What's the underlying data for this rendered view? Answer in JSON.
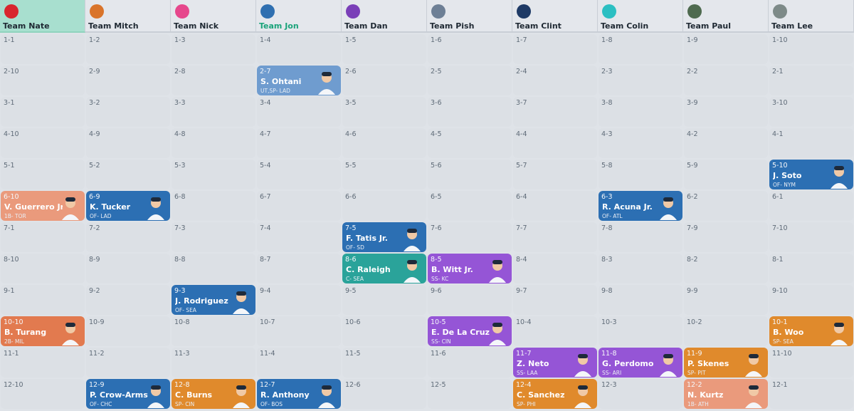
{
  "teams": [
    {
      "name": "Team Nate",
      "logo": "red-cap-icon",
      "active": true,
      "current": false
    },
    {
      "name": "Team Mitch",
      "logo": "orange-ball-logo-icon",
      "active": false,
      "current": false
    },
    {
      "name": "Team Nick",
      "logo": "pink-helmet-icon",
      "active": false,
      "current": false
    },
    {
      "name": "Team Jon",
      "logo": "mets-logo-icon",
      "active": false,
      "current": true
    },
    {
      "name": "Team Dan",
      "logo": "purple-helmet-icon",
      "active": false,
      "current": false
    },
    {
      "name": "Team Pish",
      "logo": "ball-logo-icon",
      "active": false,
      "current": false
    },
    {
      "name": "Team Clint",
      "logo": "blue-helmet-icon",
      "active": false,
      "current": false
    },
    {
      "name": "Team Colin",
      "logo": "teal-helmet-icon",
      "active": false,
      "current": false
    },
    {
      "name": "Team Paul",
      "logo": "green-helmet-icon",
      "active": false,
      "current": false
    },
    {
      "name": "Team Lee",
      "logo": "grey-helmet-icon",
      "active": false,
      "current": false
    }
  ],
  "rounds": [
    [
      "1-1",
      "1-2",
      "1-3",
      "1-4",
      "1-5",
      "1-6",
      "1-7",
      "1-8",
      "1-9",
      "1-10"
    ],
    [
      "2-10",
      "2-9",
      "2-8",
      "2-7",
      "2-6",
      "2-5",
      "2-4",
      "2-3",
      "2-2",
      "2-1"
    ],
    [
      "3-1",
      "3-2",
      "3-3",
      "3-4",
      "3-5",
      "3-6",
      "3-7",
      "3-8",
      "3-9",
      "3-10"
    ],
    [
      "4-10",
      "4-9",
      "4-8",
      "4-7",
      "4-6",
      "4-5",
      "4-4",
      "4-3",
      "4-2",
      "4-1"
    ],
    [
      "5-1",
      "5-2",
      "5-3",
      "5-4",
      "5-5",
      "5-6",
      "5-7",
      "5-8",
      "5-9",
      "5-10"
    ],
    [
      "6-10",
      "6-9",
      "6-8",
      "6-7",
      "6-6",
      "6-5",
      "6-4",
      "6-3",
      "6-2",
      "6-1"
    ],
    [
      "7-1",
      "7-2",
      "7-3",
      "7-4",
      "7-5",
      "7-6",
      "7-7",
      "7-8",
      "7-9",
      "7-10"
    ],
    [
      "8-10",
      "8-9",
      "8-8",
      "8-7",
      "8-6",
      "8-5",
      "8-4",
      "8-3",
      "8-2",
      "8-1"
    ],
    [
      "9-1",
      "9-2",
      "9-3",
      "9-4",
      "9-5",
      "9-6",
      "9-7",
      "9-8",
      "9-9",
      "9-10"
    ],
    [
      "10-10",
      "10-9",
      "10-8",
      "10-7",
      "10-6",
      "10-5",
      "10-4",
      "10-3",
      "10-2",
      "10-1"
    ],
    [
      "11-1",
      "11-2",
      "11-3",
      "11-4",
      "11-5",
      "11-6",
      "11-7",
      "11-8",
      "11-9",
      "11-10"
    ],
    [
      "12-10",
      "12-9",
      "12-8",
      "12-7",
      "12-6",
      "12-5",
      "12-4",
      "12-3",
      "12-2",
      "12-1"
    ]
  ],
  "picks": [
    {
      "round": 2,
      "team": 4,
      "player": "S. Ohtani",
      "meta": "UT,SP- LAD",
      "color": "#6f9ccf"
    },
    {
      "round": 5,
      "team": 10,
      "player": "J. Soto",
      "meta": "OF- NYM",
      "color": "#2c6fb3"
    },
    {
      "round": 6,
      "team": 1,
      "player": "V. Guerrero Jr.",
      "meta": "1B- TOR",
      "color": "#ea9a7c"
    },
    {
      "round": 6,
      "team": 2,
      "player": "K. Tucker",
      "meta": "OF- LAD",
      "color": "#2c6fb3"
    },
    {
      "round": 6,
      "team": 8,
      "player": "R. Acuna Jr.",
      "meta": "OF- ATL",
      "color": "#2c6fb3"
    },
    {
      "round": 7,
      "team": 5,
      "player": "F. Tatis Jr.",
      "meta": "OF- SD",
      "color": "#2c6fb3"
    },
    {
      "round": 8,
      "team": 5,
      "player": "C. Raleigh",
      "meta": "C- SEA",
      "color": "#2aa39a"
    },
    {
      "round": 8,
      "team": 6,
      "player": "B. Witt Jr.",
      "meta": "SS- KC",
      "color": "#9555d6"
    },
    {
      "round": 9,
      "team": 3,
      "player": "J. Rodriguez",
      "meta": "OF- SEA",
      "color": "#2c6fb3"
    },
    {
      "round": 10,
      "team": 1,
      "player": "B. Turang",
      "meta": "2B- MIL",
      "color": "#e27a4f"
    },
    {
      "round": 10,
      "team": 6,
      "player": "E. De La Cruz",
      "meta": "SS- CIN",
      "color": "#9555d6"
    },
    {
      "round": 10,
      "team": 10,
      "player": "B. Woo",
      "meta": "SP- SEA",
      "color": "#e08a2c"
    },
    {
      "round": 11,
      "team": 7,
      "player": "Z. Neto",
      "meta": "SS- LAA",
      "color": "#9555d6"
    },
    {
      "round": 11,
      "team": 8,
      "player": "G. Perdomo",
      "meta": "SS- ARI",
      "color": "#9555d6"
    },
    {
      "round": 11,
      "team": 9,
      "player": "P. Skenes",
      "meta": "SP- PIT",
      "color": "#e08a2c"
    },
    {
      "round": 12,
      "team": 2,
      "player": "P. Crow-Armst…",
      "meta": "OF- CHC",
      "color": "#2c6fb3"
    },
    {
      "round": 12,
      "team": 3,
      "player": "C. Burns",
      "meta": "SP- CIN",
      "color": "#e08a2c"
    },
    {
      "round": 12,
      "team": 4,
      "player": "R. Anthony",
      "meta": "OF- BOS",
      "color": "#2c6fb3"
    },
    {
      "round": 12,
      "team": 7,
      "player": "C. Sanchez",
      "meta": "SP- PHI",
      "color": "#e08a2c"
    },
    {
      "round": 12,
      "team": 9,
      "player": "N. Kurtz",
      "meta": "1B- ATH",
      "color": "#ea9a7c"
    }
  ]
}
